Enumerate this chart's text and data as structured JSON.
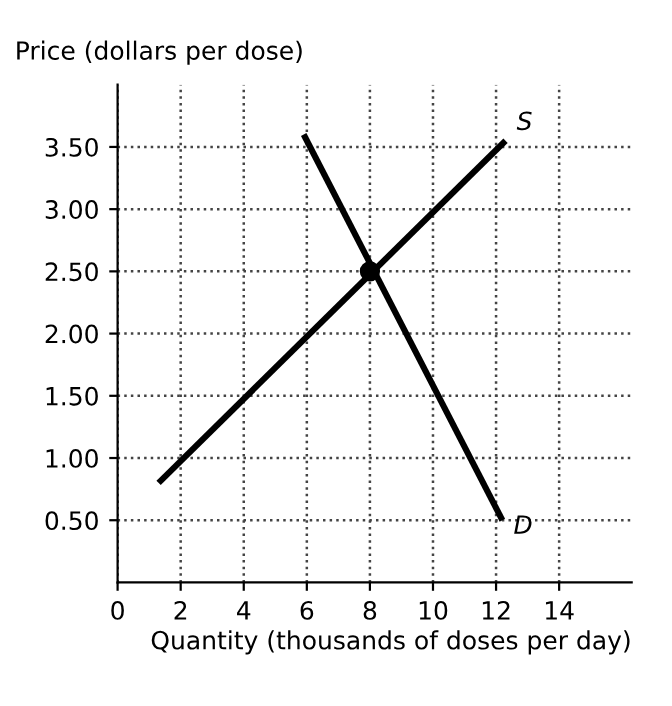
{
  "chart_data": {
    "type": "line",
    "xlabel": "Quantity (thousands of doses per day)",
    "ylabel": "Price (dollars per dose)",
    "xlim": [
      0,
      16.3
    ],
    "ylim": [
      0,
      4
    ],
    "xticks": [
      0,
      2,
      4,
      6,
      8,
      10,
      12,
      14
    ],
    "yticks": [
      {
        "value": 0.5,
        "label": "0.50"
      },
      {
        "value": 1,
        "label": "1.00"
      },
      {
        "value": 1.5,
        "label": "1.50"
      },
      {
        "value": 2,
        "label": "2.00"
      },
      {
        "value": 2.5,
        "label": "2.50"
      },
      {
        "value": 3,
        "label": "3.00"
      },
      {
        "value": 3.5,
        "label": "3.50"
      }
    ],
    "grid": true,
    "line_style": "solid",
    "series": [
      {
        "color": "#000000",
        "x": [
          1.3,
          12.3
        ],
        "values": [
          0.8,
          3.55
        ]
      },
      {
        "color": "#000000",
        "x": [
          5.9,
          12.2
        ],
        "values": [
          3.6,
          0.5
        ]
      },
      {
        "type": "scatter",
        "color": "#000000",
        "x": [
          8
        ],
        "values": [
          2.5
        ],
        "marker": "circle"
      }
    ],
    "annotations": [
      {
        "text": "S",
        "x": 12.3,
        "y": 3.55
      },
      {
        "text": "D",
        "x": 12.2,
        "y": 0.5
      }
    ]
  }
}
